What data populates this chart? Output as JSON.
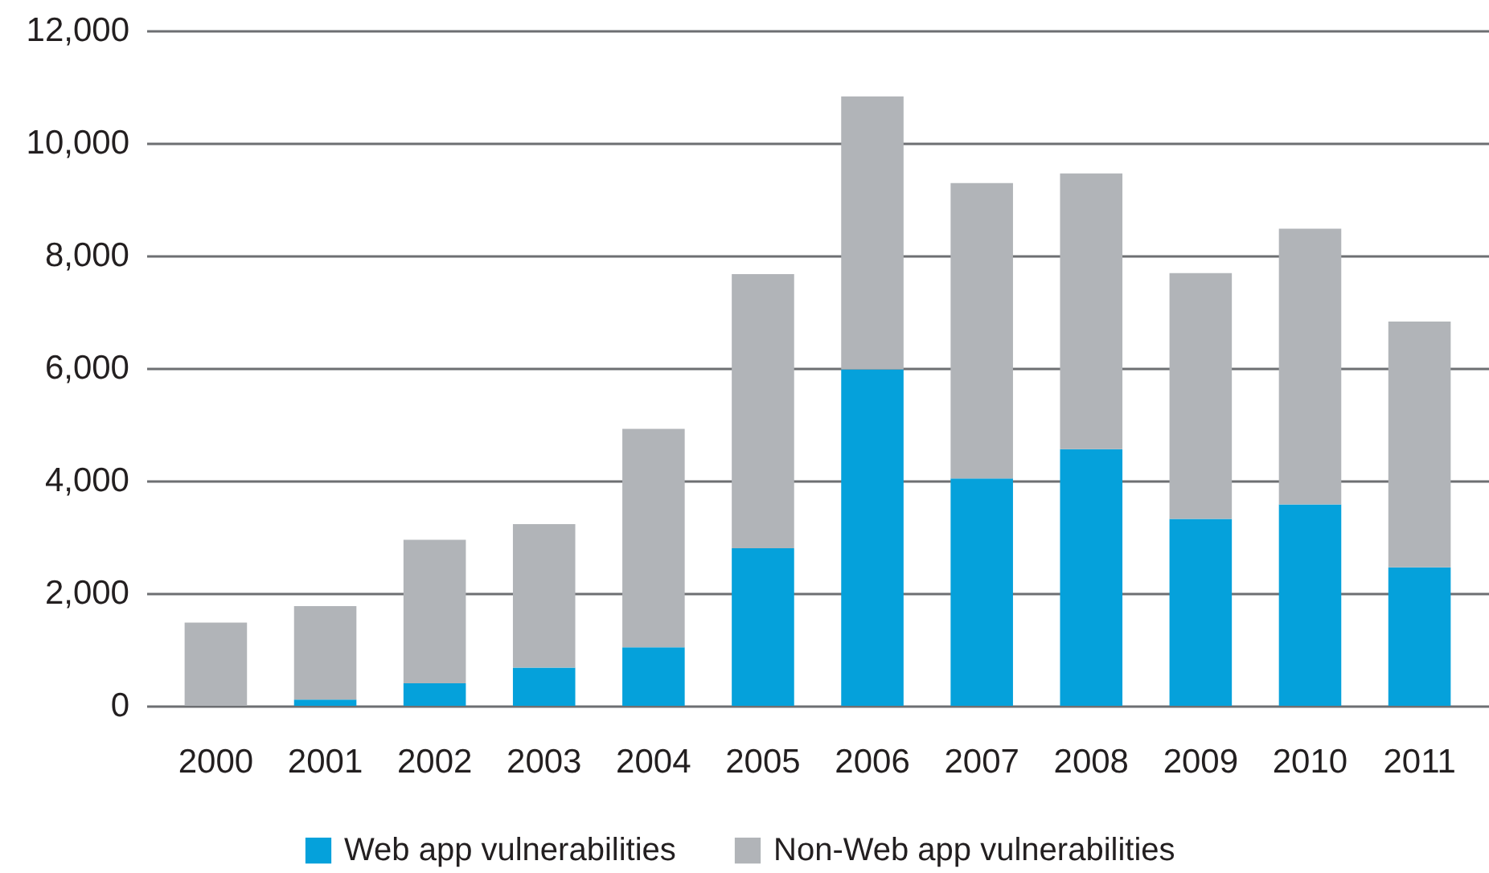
{
  "chart_data": {
    "type": "bar",
    "stacked": true,
    "categories": [
      "2000",
      "2001",
      "2002",
      "2003",
      "2004",
      "2005",
      "2006",
      "2007",
      "2008",
      "2009",
      "2010",
      "2011"
    ],
    "series": [
      {
        "name": "Web app vulnerabilities",
        "color": "#05a1db",
        "values": [
          0,
          110,
          400,
          680,
          1040,
          2800,
          5980,
          4040,
          4560,
          3320,
          3580,
          2460
        ]
      },
      {
        "name": "Non-Web app vulnerabilities",
        "color": "#b1b4b8",
        "values": [
          1480,
          1660,
          2550,
          2550,
          3880,
          4870,
          4850,
          5250,
          4900,
          4370,
          4900,
          4370
        ]
      }
    ],
    "ylim": [
      0,
      12000
    ],
    "yticks": [
      0,
      {
        "value": 2000,
        "label": "2,000"
      },
      {
        "value": 4000,
        "label": "4,000"
      },
      {
        "value": 6000,
        "label": "6,000"
      },
      {
        "value": 8000,
        "label": "8,000"
      },
      {
        "value": 10000,
        "label": "10,000"
      },
      {
        "value": 12000,
        "label": "12,000"
      }
    ],
    "grid": "y",
    "legend": "bottom"
  }
}
